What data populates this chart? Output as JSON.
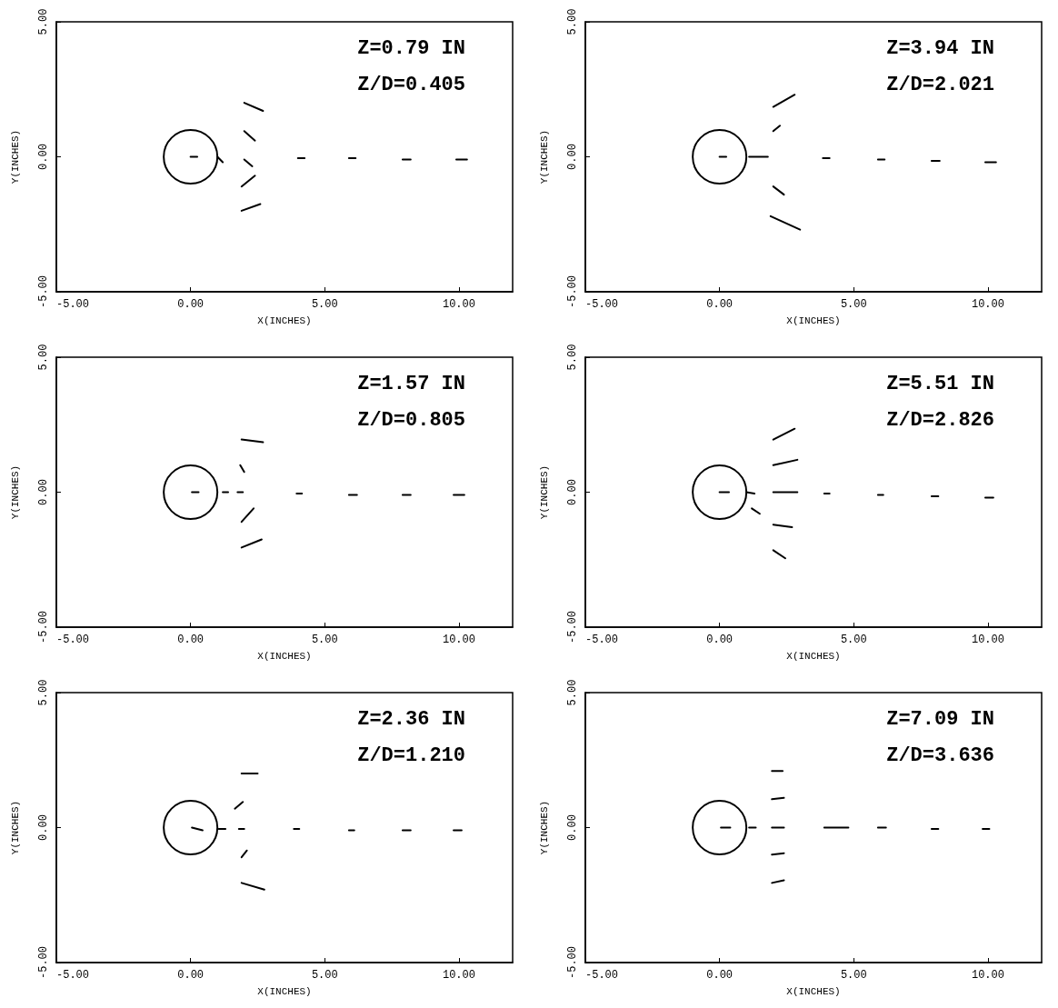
{
  "chart_data": [
    {
      "type": "line",
      "xlabel": "X(INCHES)",
      "ylabel": "Y(INCHES)",
      "annotations": [
        "Z=0.79 IN",
        "Z/D=0.405"
      ],
      "xlim": [
        -5,
        12
      ],
      "xticks": [
        {
          "value": -5,
          "label": "-5.00"
        },
        {
          "value": 0,
          "label": "0.00"
        },
        {
          "value": 5,
          "label": "5.00"
        },
        {
          "value": 10,
          "label": "10.00"
        }
      ],
      "ylim": [
        -5,
        5
      ],
      "yticks": [
        {
          "value": -5,
          "label": "-5.00"
        },
        {
          "value": 0,
          "label": "0.00"
        },
        {
          "value": 5,
          "label": "5.00"
        }
      ],
      "grid": false,
      "series": [
        {
          "x": [
            0,
            0.25
          ],
          "values": [
            0,
            0
          ]
        },
        {
          "x": [
            1,
            1.2
          ],
          "values": [
            0,
            -0.2
          ]
        },
        {
          "x": [
            2,
            2.7
          ],
          "values": [
            2,
            1.7
          ]
        },
        {
          "x": [
            2,
            2.4
          ],
          "values": [
            0.95,
            0.6
          ]
        },
        {
          "x": [
            2,
            2.3
          ],
          "values": [
            -0.1,
            -0.35
          ]
        },
        {
          "x": [
            1.9,
            2.4
          ],
          "values": [
            -1.1,
            -0.7
          ]
        },
        {
          "x": [
            1.9,
            2.6
          ],
          "values": [
            -2,
            -1.75
          ]
        },
        {
          "x": [
            4,
            4.25
          ],
          "values": [
            -0.05,
            -0.05
          ]
        },
        {
          "x": [
            5.9,
            6.15
          ],
          "values": [
            -0.05,
            -0.05
          ]
        },
        {
          "x": [
            7.9,
            8.2
          ],
          "values": [
            -0.1,
            -0.1
          ]
        },
        {
          "x": [
            9.9,
            10.3
          ],
          "values": [
            -0.1,
            -0.1
          ]
        }
      ]
    },
    {
      "type": "line",
      "xlabel": "X(INCHES)",
      "ylabel": "Y(INCHES)",
      "annotations": [
        "Z=3.94 IN",
        "Z/D=2.021"
      ],
      "xlim": [
        -5,
        12
      ],
      "xticks": [
        {
          "value": -5,
          "label": "-5.00"
        },
        {
          "value": 0,
          "label": "0.00"
        },
        {
          "value": 5,
          "label": "5.00"
        },
        {
          "value": 10,
          "label": "10.00"
        }
      ],
      "ylim": [
        -5,
        5
      ],
      "yticks": [
        {
          "value": -5,
          "label": "-5.00"
        },
        {
          "value": 0,
          "label": "0.00"
        },
        {
          "value": 5,
          "label": "5.00"
        }
      ],
      "grid": false,
      "series": [
        {
          "x": [
            0,
            0.25
          ],
          "values": [
            0,
            0
          ]
        },
        {
          "x": [
            1.1,
            1.8
          ],
          "values": [
            0,
            0
          ]
        },
        {
          "x": [
            2,
            2.8
          ],
          "values": [
            1.85,
            2.3
          ]
        },
        {
          "x": [
            2,
            2.25
          ],
          "values": [
            0.95,
            1.15
          ]
        },
        {
          "x": [
            2,
            2.4
          ],
          "values": [
            -1.1,
            -1.4
          ]
        },
        {
          "x": [
            1.9,
            3
          ],
          "values": [
            -2.2,
            -2.7
          ]
        },
        {
          "x": [
            3.85,
            4.1
          ],
          "values": [
            -0.05,
            -0.05
          ]
        },
        {
          "x": [
            5.9,
            6.15
          ],
          "values": [
            -0.1,
            -0.1
          ]
        },
        {
          "x": [
            7.9,
            8.2
          ],
          "values": [
            -0.15,
            -0.15
          ]
        },
        {
          "x": [
            9.9,
            10.3
          ],
          "values": [
            -0.2,
            -0.2
          ]
        }
      ]
    },
    {
      "type": "line",
      "xlabel": "X(INCHES)",
      "ylabel": "Y(INCHES)",
      "annotations": [
        "Z=1.57 IN",
        "Z/D=0.805"
      ],
      "xlim": [
        -5,
        12
      ],
      "xticks": [
        {
          "value": -5,
          "label": "-5.00"
        },
        {
          "value": 0,
          "label": "0.00"
        },
        {
          "value": 5,
          "label": "5.00"
        },
        {
          "value": 10,
          "label": "10.00"
        }
      ],
      "ylim": [
        -5,
        5
      ],
      "yticks": [
        {
          "value": -5,
          "label": "-5.00"
        },
        {
          "value": 0,
          "label": "0.00"
        },
        {
          "value": 5,
          "label": "5.00"
        }
      ],
      "grid": false,
      "series": [
        {
          "x": [
            0.05,
            0.3
          ],
          "values": [
            0,
            0
          ]
        },
        {
          "x": [
            1.2,
            1.4
          ],
          "values": [
            0,
            0
          ]
        },
        {
          "x": [
            1.9,
            2.7
          ],
          "values": [
            1.95,
            1.85
          ]
        },
        {
          "x": [
            1.85,
            2
          ],
          "values": [
            1,
            0.75
          ]
        },
        {
          "x": [
            1.75,
            1.95
          ],
          "values": [
            0,
            0
          ]
        },
        {
          "x": [
            1.9,
            2.35
          ],
          "values": [
            -1.1,
            -0.6
          ]
        },
        {
          "x": [
            1.9,
            2.65
          ],
          "values": [
            -2.05,
            -1.75
          ]
        },
        {
          "x": [
            3.95,
            4.15
          ],
          "values": [
            -0.05,
            -0.05
          ]
        },
        {
          "x": [
            5.9,
            6.2
          ],
          "values": [
            -0.1,
            -0.1
          ]
        },
        {
          "x": [
            7.9,
            8.2
          ],
          "values": [
            -0.1,
            -0.1
          ]
        },
        {
          "x": [
            9.8,
            10.2
          ],
          "values": [
            -0.1,
            -0.1
          ]
        }
      ]
    },
    {
      "type": "line",
      "xlabel": "X(INCHES)",
      "ylabel": "Y(INCHES)",
      "annotations": [
        "Z=5.51 IN",
        "Z/D=2.826"
      ],
      "xlim": [
        -5,
        12
      ],
      "xticks": [
        {
          "value": -5,
          "label": "-5.00"
        },
        {
          "value": 0,
          "label": "0.00"
        },
        {
          "value": 5,
          "label": "5.00"
        },
        {
          "value": 10,
          "label": "10.00"
        }
      ],
      "ylim": [
        -5,
        5
      ],
      "yticks": [
        {
          "value": -5,
          "label": "-5.00"
        },
        {
          "value": 0,
          "label": "0.00"
        },
        {
          "value": 5,
          "label": "5.00"
        }
      ],
      "grid": false,
      "series": [
        {
          "x": [
            0,
            0.35
          ],
          "values": [
            0,
            0
          ]
        },
        {
          "x": [
            1,
            1.3
          ],
          "values": [
            0,
            -0.05
          ]
        },
        {
          "x": [
            1.2,
            1.5
          ],
          "values": [
            -0.6,
            -0.8
          ]
        },
        {
          "x": [
            2,
            2.8
          ],
          "values": [
            1.95,
            2.35
          ]
        },
        {
          "x": [
            2,
            2.9
          ],
          "values": [
            1,
            1.2
          ]
        },
        {
          "x": [
            2,
            2.9
          ],
          "values": [
            0,
            0
          ]
        },
        {
          "x": [
            2,
            2.7
          ],
          "values": [
            -1.2,
            -1.3
          ]
        },
        {
          "x": [
            2,
            2.45
          ],
          "values": [
            -2.15,
            -2.45
          ]
        },
        {
          "x": [
            3.9,
            4.1
          ],
          "values": [
            -0.05,
            -0.05
          ]
        },
        {
          "x": [
            5.9,
            6.1
          ],
          "values": [
            -0.1,
            -0.1
          ]
        },
        {
          "x": [
            7.9,
            8.15
          ],
          "values": [
            -0.15,
            -0.15
          ]
        },
        {
          "x": [
            9.9,
            10.2
          ],
          "values": [
            -0.2,
            -0.2
          ]
        }
      ]
    },
    {
      "type": "line",
      "xlabel": "X(INCHES)",
      "ylabel": "Y(INCHES)",
      "annotations": [
        "Z=2.36 IN",
        "Z/D=1.210"
      ],
      "xlim": [
        -5,
        12
      ],
      "xticks": [
        {
          "value": -5,
          "label": "-5.00"
        },
        {
          "value": 0,
          "label": "0.00"
        },
        {
          "value": 5,
          "label": "5.00"
        },
        {
          "value": 10,
          "label": "10.00"
        }
      ],
      "ylim": [
        -5,
        5
      ],
      "yticks": [
        {
          "value": -5,
          "label": "-5.00"
        },
        {
          "value": 0,
          "label": "0.00"
        },
        {
          "value": 5,
          "label": "5.00"
        }
      ],
      "grid": false,
      "series": [
        {
          "x": [
            0.05,
            0.45
          ],
          "values": [
            0,
            -0.1
          ]
        },
        {
          "x": [
            1.05,
            1.3
          ],
          "values": [
            -0.05,
            -0.05
          ]
        },
        {
          "x": [
            1.9,
            2.5
          ],
          "values": [
            2,
            2
          ]
        },
        {
          "x": [
            1.65,
            1.95
          ],
          "values": [
            0.7,
            0.95
          ]
        },
        {
          "x": [
            1.8,
            2
          ],
          "values": [
            -0.05,
            -0.05
          ]
        },
        {
          "x": [
            1.9,
            2.1
          ],
          "values": [
            -1.1,
            -0.85
          ]
        },
        {
          "x": [
            1.9,
            2.75
          ],
          "values": [
            -2.05,
            -2.3
          ]
        },
        {
          "x": [
            3.85,
            4.05
          ],
          "values": [
            -0.05,
            -0.05
          ]
        },
        {
          "x": [
            5.9,
            6.1
          ],
          "values": [
            -0.1,
            -0.1
          ]
        },
        {
          "x": [
            7.9,
            8.2
          ],
          "values": [
            -0.1,
            -0.1
          ]
        },
        {
          "x": [
            9.8,
            10.1
          ],
          "values": [
            -0.1,
            -0.1
          ]
        }
      ]
    },
    {
      "type": "line",
      "xlabel": "X(INCHES)",
      "ylabel": "Y(INCHES)",
      "annotations": [
        "Z=7.09 IN",
        "Z/D=3.636"
      ],
      "xlim": [
        -5,
        12
      ],
      "xticks": [
        {
          "value": -5,
          "label": "-5.00"
        },
        {
          "value": 0,
          "label": "0.00"
        },
        {
          "value": 5,
          "label": "5.00"
        },
        {
          "value": 10,
          "label": "10.00"
        }
      ],
      "ylim": [
        -5,
        5
      ],
      "yticks": [
        {
          "value": -5,
          "label": "-5.00"
        },
        {
          "value": 0,
          "label": "0.00"
        },
        {
          "value": 5,
          "label": "5.00"
        }
      ],
      "grid": false,
      "series": [
        {
          "x": [
            0.05,
            0.4
          ],
          "values": [
            0,
            0
          ]
        },
        {
          "x": [
            1.1,
            1.35
          ],
          "values": [
            0,
            0
          ]
        },
        {
          "x": [
            1.95,
            2.35
          ],
          "values": [
            2.1,
            2.1
          ]
        },
        {
          "x": [
            1.95,
            2.4
          ],
          "values": [
            1.05,
            1.1
          ]
        },
        {
          "x": [
            1.95,
            2.4
          ],
          "values": [
            0,
            0
          ]
        },
        {
          "x": [
            1.95,
            2.4
          ],
          "values": [
            -1,
            -0.95
          ]
        },
        {
          "x": [
            1.95,
            2.4
          ],
          "values": [
            -2.05,
            -1.95
          ]
        },
        {
          "x": [
            3.9,
            4.8
          ],
          "values": [
            0,
            0
          ]
        },
        {
          "x": [
            5.9,
            6.2
          ],
          "values": [
            0,
            0
          ]
        },
        {
          "x": [
            7.9,
            8.15
          ],
          "values": [
            -0.05,
            -0.05
          ]
        },
        {
          "x": [
            9.8,
            10.05
          ],
          "values": [
            -0.05,
            -0.05
          ]
        }
      ]
    }
  ]
}
